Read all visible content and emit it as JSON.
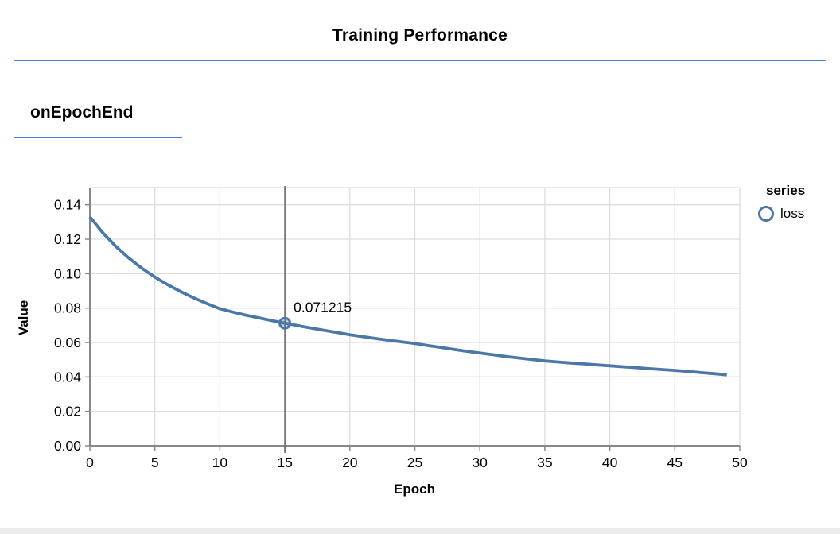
{
  "page": {
    "title": "Training Performance",
    "section_title": "onEpochEnd"
  },
  "colors": {
    "accent_rule": "#4a7fd6",
    "series_line": "#4c78a8",
    "grid": "#dddddd",
    "axis": "#888888",
    "hover_rule": "#6b6b6b",
    "tick_label": "#000000",
    "footer_strip": "#ececec"
  },
  "legend": {
    "title": "series",
    "items": [
      {
        "label": "loss",
        "color": "#4c78a8"
      }
    ]
  },
  "chart_data": {
    "type": "line",
    "title": "",
    "xlabel": "Epoch",
    "ylabel": "Value",
    "xlim": [
      0,
      50
    ],
    "ylim": [
      0,
      0.15
    ],
    "grid": true,
    "legend_position": "right",
    "x_ticks": [
      0,
      5,
      10,
      15,
      20,
      25,
      30,
      35,
      40,
      45,
      50
    ],
    "x_tick_labels": [
      "0",
      "5",
      "10",
      "15",
      "20",
      "25",
      "30",
      "35",
      "40",
      "45",
      "50"
    ],
    "y_ticks": [
      0,
      0.02,
      0.04,
      0.06,
      0.08,
      0.1,
      0.12,
      0.14
    ],
    "y_tick_labels": [
      "0.00",
      "0.02",
      "0.04",
      "0.06",
      "0.08",
      "0.10",
      "0.12",
      "0.14"
    ],
    "series": [
      {
        "name": "loss",
        "x": [
          0,
          1,
          2,
          3,
          4,
          5,
          6,
          7,
          8,
          9,
          10,
          11,
          12,
          13,
          14,
          15,
          16,
          17,
          18,
          19,
          20,
          21,
          22,
          23,
          24,
          25,
          26,
          27,
          28,
          29,
          30,
          31,
          32,
          33,
          34,
          35,
          36,
          37,
          38,
          39,
          40,
          41,
          42,
          43,
          44,
          45,
          46,
          47,
          48,
          49
        ],
        "y": [
          0.133,
          0.1237,
          0.1158,
          0.109,
          0.1031,
          0.098,
          0.0935,
          0.0895,
          0.0859,
          0.0826,
          0.0796,
          0.0777,
          0.0759,
          0.0743,
          0.0727,
          0.071215,
          0.0698,
          0.0684,
          0.0671,
          0.0658,
          0.0645,
          0.0634,
          0.0623,
          0.0613,
          0.0603,
          0.0594,
          0.0582,
          0.0571,
          0.056,
          0.0549,
          0.0539,
          0.0529,
          0.0519,
          0.051,
          0.0501,
          0.0493,
          0.0487,
          0.0481,
          0.0476,
          0.047,
          0.0465,
          0.0459,
          0.0454,
          0.0448,
          0.0443,
          0.0438,
          0.0432,
          0.0425,
          0.0419,
          0.0412
        ]
      }
    ],
    "highlight": {
      "x": 15,
      "y": 0.071215,
      "label": "0.071215"
    }
  }
}
